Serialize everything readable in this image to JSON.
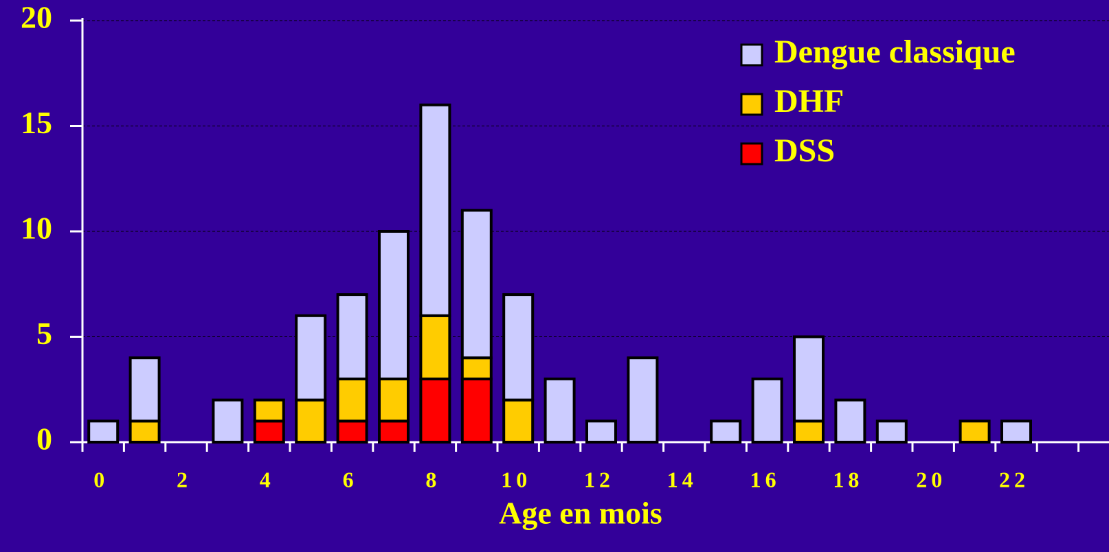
{
  "chart_data": {
    "type": "bar",
    "stacked": true,
    "x_label": "Age en mois",
    "categories": [
      "0",
      null,
      "2",
      null,
      "4",
      null,
      "6",
      null,
      "8",
      null,
      "10",
      null,
      "12",
      null,
      "14",
      null,
      "16",
      null,
      "18",
      null,
      "20",
      null,
      "22"
    ],
    "series": [
      {
        "name": "Dengue classique",
        "color": "#ccccff",
        "values": [
          1,
          3,
          0,
          2,
          0,
          4,
          4,
          7,
          10,
          7,
          5,
          3,
          1,
          4,
          0,
          1,
          3,
          4,
          2,
          1,
          0,
          0,
          1
        ]
      },
      {
        "name": "DHF",
        "color": "#ffcc00",
        "values": [
          0,
          1,
          0,
          0,
          1,
          2,
          2,
          2,
          3,
          1,
          2,
          0,
          0,
          0,
          0,
          0,
          0,
          1,
          0,
          0,
          0,
          1,
          0
        ]
      },
      {
        "name": "DSS",
        "color": "#ff0000",
        "values": [
          0,
          0,
          0,
          0,
          1,
          0,
          1,
          1,
          3,
          3,
          0,
          0,
          0,
          0,
          0,
          0,
          0,
          0,
          0,
          0,
          0,
          0,
          0
        ]
      }
    ],
    "ylim": [
      0,
      20
    ],
    "yticks": [
      0,
      5,
      10,
      15,
      20
    ],
    "grid": true,
    "legend": "upper right"
  }
}
